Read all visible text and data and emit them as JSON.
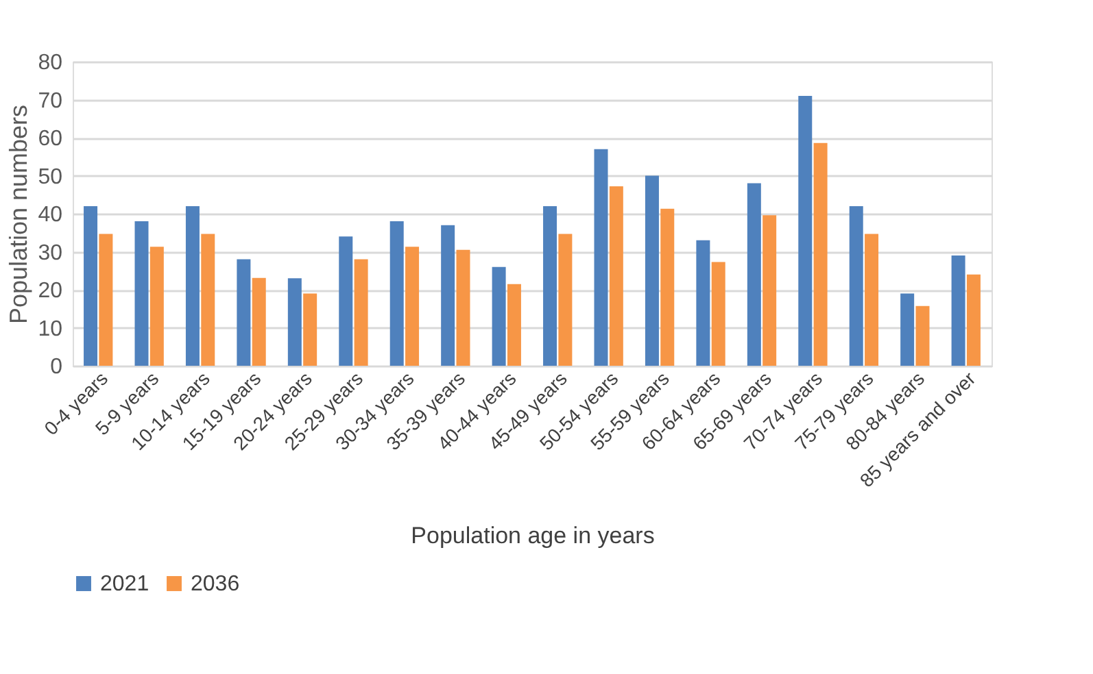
{
  "chart_data": {
    "type": "bar",
    "xlabel": "Population age in years",
    "ylabel": "Population numbers",
    "categories": [
      "0-4 years",
      "5-9 years",
      "10-14 years",
      "15-19 years",
      "20-24 years",
      "25-29 years",
      "30-34 years",
      "35-39 years",
      "40-44 years",
      "45-49 years",
      "50-54 years",
      "55-59 years",
      "60-64 years",
      "65-69 years",
      "70-74 years",
      "75-79 years",
      "80-84 years",
      "85 years and over"
    ],
    "series": [
      {
        "name": "2021",
        "color": "#4f81bd",
        "values": [
          42,
          38,
          42,
          28,
          23,
          34,
          38,
          37,
          26,
          42,
          57,
          50,
          33,
          48,
          71,
          42,
          19,
          29
        ]
      },
      {
        "name": "2036",
        "color": "#f79646",
        "values": [
          34.7,
          31.3,
          34.7,
          23.1,
          19,
          28,
          31.3,
          30.5,
          21.5,
          34.7,
          47.2,
          41.3,
          27.3,
          39.6,
          58.6,
          34.7,
          15.7,
          24
        ]
      }
    ],
    "ylim": [
      0,
      80
    ],
    "yticks": [
      0,
      10,
      20,
      30,
      40,
      50,
      60,
      70,
      80
    ],
    "grid": "y",
    "legend": "bottom"
  }
}
